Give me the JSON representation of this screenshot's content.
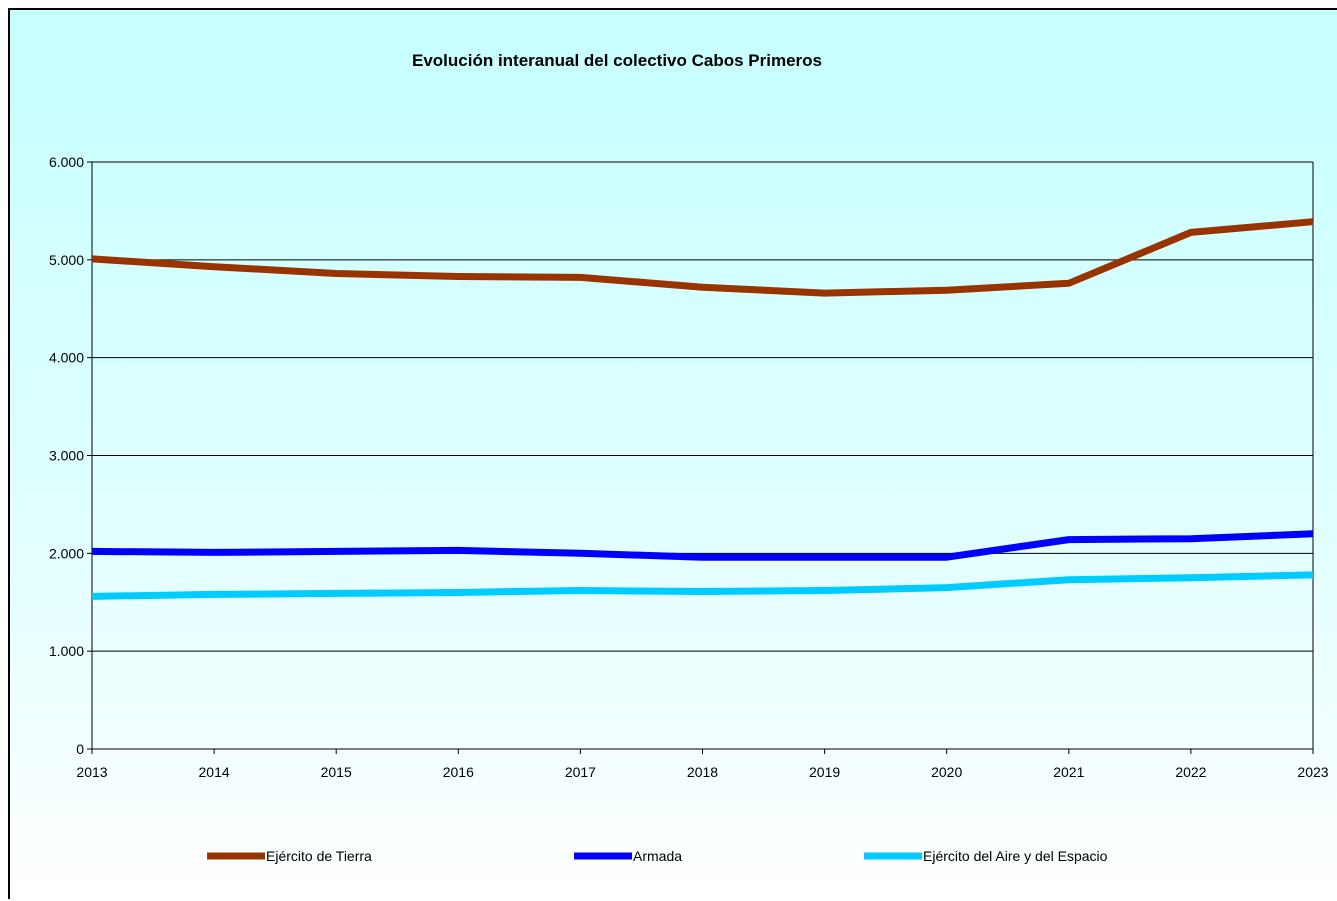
{
  "chart_data": {
    "type": "line",
    "title": "Evolución interanual del colectivo Cabos Primeros",
    "xlabel": "",
    "ylabel": "",
    "x": [
      "2013",
      "2014",
      "2015",
      "2016",
      "2017",
      "2018",
      "2019",
      "2020",
      "2021",
      "2022",
      "2023"
    ],
    "ylim": [
      0,
      6000
    ],
    "yticks": [
      {
        "value": 0,
        "label": "0"
      },
      {
        "value": 1000,
        "label": "1.000"
      },
      {
        "value": 2000,
        "label": "2.000"
      },
      {
        "value": 3000,
        "label": "3.000"
      },
      {
        "value": 4000,
        "label": "4.000"
      },
      {
        "value": 5000,
        "label": "5.000"
      },
      {
        "value": 6000,
        "label": "6.000"
      }
    ],
    "grid": true,
    "legend_position": "bottom",
    "series": [
      {
        "name": "Ejército de Tierra",
        "color": "#993300",
        "values": [
          5010,
          4930,
          4860,
          4830,
          4820,
          4720,
          4660,
          4690,
          4760,
          5280,
          5390
        ]
      },
      {
        "name": "Armada",
        "color": "#0000ff",
        "values": [
          2020,
          2010,
          2020,
          2030,
          2000,
          1960,
          1960,
          1960,
          2140,
          2150,
          2200
        ]
      },
      {
        "name": "Ejército del Aire y del Espacio",
        "color": "#00ccff",
        "values": [
          1560,
          1580,
          1590,
          1600,
          1620,
          1610,
          1620,
          1650,
          1730,
          1750,
          1780
        ]
      }
    ]
  }
}
